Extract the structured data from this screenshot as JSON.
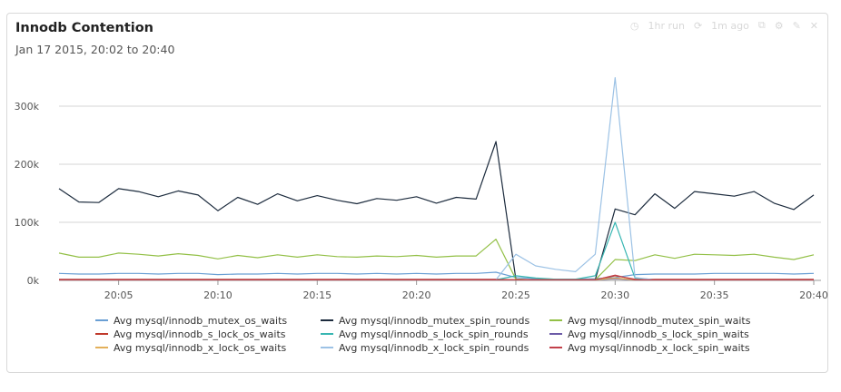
{
  "panel": {
    "title": "Innodb Contention",
    "subtitle": "Jan 17 2015, 20:02 to 20:40",
    "toolbar": [
      {
        "icon": "clock-icon",
        "label": "1hr run"
      },
      {
        "icon": "refresh-icon",
        "label": "1m ago"
      },
      {
        "icon": "copy-icon"
      },
      {
        "icon": "settings-icon"
      },
      {
        "icon": "edit-icon"
      },
      {
        "icon": "close-icon"
      }
    ]
  },
  "chart_data": {
    "type": "line",
    "title": "Innodb Contention",
    "subtitle": "Jan 17 2015, 20:02 to 20:40",
    "xlabel": "",
    "ylabel": "",
    "x": [
      2,
      3,
      4,
      5,
      6,
      7,
      8,
      9,
      10,
      11,
      12,
      13,
      14,
      15,
      16,
      17,
      18,
      19,
      20,
      21,
      22,
      23,
      24,
      25,
      26,
      27,
      28,
      29,
      30,
      31,
      32,
      33,
      34,
      35,
      36,
      37,
      38,
      39,
      40
    ],
    "x_ticks": [
      5,
      10,
      15,
      20,
      25,
      30,
      35,
      40
    ],
    "x_tick_labels": [
      "20:05",
      "20:10",
      "20:15",
      "20:20",
      "20:25",
      "20:30",
      "20:35",
      "20:40"
    ],
    "xlim": [
      2,
      40
    ],
    "ylim": [
      0,
      350000
    ],
    "y_ticks": [
      0,
      100000,
      200000,
      300000
    ],
    "y_tick_labels": [
      "0k",
      "100k",
      "200k",
      "300k"
    ],
    "grid": true,
    "legend_position": "bottom",
    "series": [
      {
        "name": "Avg mysql/innodb_mutex_os_waits",
        "color": "#6a9fd4",
        "values": [
          12000,
          11000,
          11000,
          12000,
          12000,
          11000,
          12000,
          12000,
          10000,
          11000,
          11000,
          12000,
          11000,
          12000,
          12000,
          11000,
          12000,
          11000,
          12000,
          11000,
          12000,
          12000,
          14000,
          5000,
          3000,
          2000,
          2000,
          3000,
          5000,
          10000,
          11000,
          11000,
          11000,
          12000,
          12000,
          12000,
          12000,
          11000,
          12000
        ]
      },
      {
        "name": "Avg mysql/innodb_mutex_spin_rounds",
        "color": "#1c2b3d",
        "values": [
          158000,
          135000,
          134000,
          158000,
          153000,
          144000,
          154000,
          147000,
          120000,
          143000,
          131000,
          149000,
          137000,
          146000,
          138000,
          132000,
          141000,
          138000,
          144000,
          133000,
          143000,
          140000,
          239000,
          2000,
          1000,
          1000,
          1000,
          1000,
          123000,
          113000,
          149000,
          124000,
          153000,
          149000,
          145000,
          153000,
          133000,
          122000,
          147000
        ]
      },
      {
        "name": "Avg mysql/innodb_mutex_spin_waits",
        "color": "#93c047",
        "values": [
          47000,
          40000,
          40000,
          47000,
          45000,
          42000,
          46000,
          43000,
          37000,
          43000,
          39000,
          44000,
          40000,
          44000,
          41000,
          40000,
          42000,
          41000,
          43000,
          40000,
          42000,
          42000,
          71000,
          2000,
          1000,
          1000,
          1000,
          1000,
          36000,
          34000,
          44000,
          38000,
          45000,
          44000,
          43000,
          45000,
          40000,
          36000,
          44000
        ]
      },
      {
        "name": "Avg mysql/innodb_s_lock_os_waits",
        "color": "#c0392b",
        "values": [
          2000,
          2000,
          2000,
          2000,
          2000,
          2000,
          2000,
          2000,
          2000,
          2000,
          2000,
          2000,
          2000,
          2000,
          2000,
          2000,
          2000,
          2000,
          2000,
          2000,
          2000,
          2000,
          2000,
          1000,
          1000,
          1000,
          1000,
          1000,
          8000,
          2000,
          2000,
          2000,
          2000,
          2000,
          2000,
          2000,
          2000,
          2000,
          2000
        ]
      },
      {
        "name": "Avg mysql/innodb_s_lock_spin_rounds",
        "color": "#38b6b2",
        "values": [
          1000,
          1000,
          1000,
          1000,
          1000,
          1000,
          1000,
          1000,
          1000,
          1000,
          1000,
          1000,
          1000,
          1000,
          1000,
          1000,
          1000,
          1000,
          1000,
          1000,
          1000,
          1000,
          1000,
          8000,
          4000,
          2000,
          2000,
          8000,
          100000,
          4000,
          1000,
          1000,
          1000,
          1000,
          1000,
          1000,
          1000,
          1000,
          1000
        ]
      },
      {
        "name": "Avg mysql/innodb_s_lock_spin_waits",
        "color": "#6c5ba7",
        "values": [
          1000,
          1000,
          1000,
          1000,
          1000,
          1000,
          1000,
          1000,
          1000,
          1000,
          1000,
          1000,
          1000,
          1000,
          1000,
          1000,
          1000,
          1000,
          1000,
          1000,
          1000,
          1000,
          1000,
          1000,
          1000,
          1000,
          1000,
          1000,
          3000,
          1000,
          1000,
          1000,
          1000,
          1000,
          1000,
          1000,
          1000,
          1000,
          1000
        ]
      },
      {
        "name": "Avg mysql/innodb_x_lock_os_waits",
        "color": "#e3b05a",
        "values": [
          1000,
          1000,
          1000,
          1000,
          1000,
          1000,
          1000,
          1000,
          1000,
          1000,
          1000,
          1000,
          1000,
          1000,
          1000,
          1000,
          1000,
          1000,
          1000,
          1000,
          1000,
          1000,
          1000,
          1000,
          1000,
          1000,
          1000,
          1000,
          4000,
          1000,
          1000,
          1000,
          1000,
          1000,
          1000,
          1000,
          1000,
          1000,
          1000
        ]
      },
      {
        "name": "Avg mysql/innodb_x_lock_spin_rounds",
        "color": "#9cc2e5",
        "values": [
          1000,
          1000,
          1000,
          1000,
          1000,
          1000,
          1000,
          1000,
          1000,
          1000,
          1000,
          1000,
          1000,
          1000,
          1000,
          1000,
          1000,
          1000,
          1000,
          1000,
          1000,
          1000,
          1000,
          45000,
          25000,
          19000,
          15000,
          45000,
          349000,
          5000,
          1000,
          1000,
          1000,
          1000,
          1000,
          1000,
          1000,
          1000,
          1000
        ]
      },
      {
        "name": "Avg mysql/innodb_x_lock_spin_waits",
        "color": "#c2404a",
        "values": [
          1000,
          1000,
          1000,
          1000,
          1000,
          1000,
          1000,
          1000,
          1000,
          1000,
          1000,
          1000,
          1000,
          1000,
          1000,
          1000,
          1000,
          1000,
          1000,
          1000,
          1000,
          1000,
          1000,
          1000,
          1000,
          1000,
          1000,
          1000,
          9000,
          1000,
          1000,
          1000,
          1000,
          1000,
          1000,
          1000,
          1000,
          1000,
          1000
        ]
      }
    ]
  }
}
